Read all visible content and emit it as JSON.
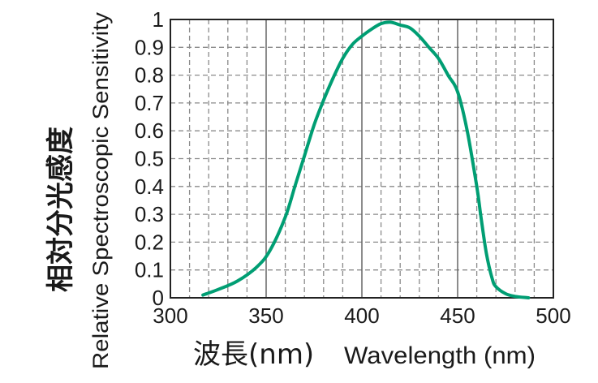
{
  "chart_data": {
    "type": "line",
    "xlabel_jp": "波長(nm)",
    "xlabel_en": "Wavelength (nm)",
    "ylabel_jp": "相対分光感度",
    "ylabel_en": "Relative Spectroscopic Sensitivity",
    "xlim": [
      300,
      500
    ],
    "ylim": [
      0,
      1
    ],
    "x_ticks": [
      {
        "value": 300,
        "label": "300"
      },
      {
        "value": 350,
        "label": "350"
      },
      {
        "value": 400,
        "label": "400"
      },
      {
        "value": 450,
        "label": "450"
      },
      {
        "value": 500,
        "label": "500"
      }
    ],
    "y_ticks": [
      {
        "value": 0,
        "label": "0"
      },
      {
        "value": 0.1,
        "label": "0.1"
      },
      {
        "value": 0.2,
        "label": "0.2"
      },
      {
        "value": 0.3,
        "label": "0.3"
      },
      {
        "value": 0.4,
        "label": "0.4"
      },
      {
        "value": 0.5,
        "label": "0.5"
      },
      {
        "value": 0.6,
        "label": "0.6"
      },
      {
        "value": 0.7,
        "label": "0.7"
      },
      {
        "value": 0.8,
        "label": "0.8"
      },
      {
        "value": 0.9,
        "label": "0.9"
      },
      {
        "value": 1,
        "label": "1"
      }
    ],
    "grid": true,
    "series": [
      {
        "color": "#009e73",
        "x": [
          317,
          325,
          335,
          345,
          352,
          360,
          365,
          370,
          375,
          380,
          385,
          390,
          395,
          400,
          405,
          410,
          415,
          420,
          425,
          430,
          435,
          440,
          445,
          450,
          455,
          460,
          462,
          465,
          468,
          470,
          475,
          480,
          487
        ],
        "y": [
          0.01,
          0.03,
          0.06,
          0.11,
          0.17,
          0.29,
          0.4,
          0.51,
          0.62,
          0.71,
          0.79,
          0.86,
          0.91,
          0.94,
          0.965,
          0.985,
          0.99,
          0.98,
          0.97,
          0.94,
          0.9,
          0.86,
          0.8,
          0.74,
          0.6,
          0.4,
          0.3,
          0.16,
          0.07,
          0.04,
          0.015,
          0.005,
          0.0
        ]
      }
    ]
  }
}
